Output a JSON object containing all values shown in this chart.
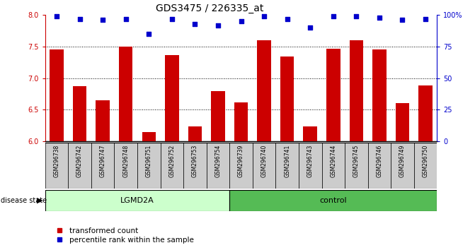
{
  "title": "GDS3475 / 226335_at",
  "samples": [
    "GSM296738",
    "GSM296742",
    "GSM296747",
    "GSM296748",
    "GSM296751",
    "GSM296752",
    "GSM296753",
    "GSM296754",
    "GSM296739",
    "GSM296740",
    "GSM296741",
    "GSM296743",
    "GSM296744",
    "GSM296745",
    "GSM296746",
    "GSM296749",
    "GSM296750"
  ],
  "bar_values": [
    7.46,
    6.87,
    6.65,
    7.5,
    6.14,
    7.37,
    6.24,
    6.8,
    6.61,
    7.6,
    7.34,
    6.24,
    7.47,
    7.6,
    7.46,
    6.6,
    6.88
  ],
  "pct_values": [
    99,
    97,
    96,
    97,
    85,
    97,
    93,
    92,
    95,
    99,
    97,
    90,
    99,
    99,
    98,
    96,
    97
  ],
  "groups": [
    "LGMD2A",
    "LGMD2A",
    "LGMD2A",
    "LGMD2A",
    "LGMD2A",
    "LGMD2A",
    "LGMD2A",
    "LGMD2A",
    "control",
    "control",
    "control",
    "control",
    "control",
    "control",
    "control",
    "control",
    "control"
  ],
  "bar_color": "#cc0000",
  "dot_color": "#0000cc",
  "lgmd2a_bg": "#ccffcc",
  "control_bg": "#55bb55",
  "sample_bg": "#cccccc",
  "ylim_left": [
    6,
    8
  ],
  "ylim_right": [
    0,
    100
  ],
  "yticks_left": [
    6,
    6.5,
    7,
    7.5,
    8
  ],
  "yticks_right": [
    0,
    25,
    50,
    75,
    100
  ],
  "ytick_labels_right": [
    "0",
    "25",
    "50",
    "75",
    "100%"
  ],
  "grid_lines": [
    6.5,
    7.0,
    7.5
  ],
  "title_fontsize": 10,
  "tick_fontsize": 7,
  "label_fontsize": 8,
  "legend_items": [
    "transformed count",
    "percentile rank within the sample"
  ]
}
